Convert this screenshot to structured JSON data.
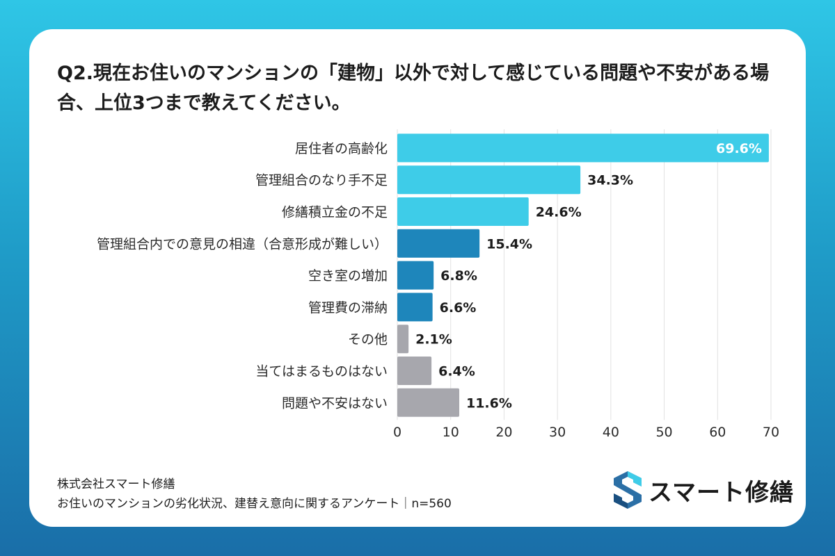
{
  "title": "Q2.現在お住いのマンションの「建物」以外で対して感じている問題や不安がある場合、上位3つまで教えてください。",
  "footer": {
    "company": "株式会社スマート修繕",
    "note": "お住いのマンションの劣化状況、建替え意向に関するアンケート｜n=560"
  },
  "logo": {
    "text": "スマート修繕",
    "icon": "s-logo-icon"
  },
  "colors": {
    "background_top": "#2fc6e6",
    "background_bottom": "#1a6ea8",
    "bar_top3": "#3ecce8",
    "bar_mid": "#1e86bb",
    "bar_other": "#a7a7ad",
    "grid": "#e2e2e2"
  },
  "chart_data": {
    "type": "bar",
    "orientation": "horizontal",
    "categories": [
      "居住者の高齢化",
      "管理組合のなり手不足",
      "修繕積立金の不足",
      "管理組合内での意見の相違（合意形成が難しい）",
      "空き室の増加",
      "管理費の滞納",
      "その他",
      "当てはまるものはない",
      "問題や不安はない"
    ],
    "values": [
      69.6,
      34.3,
      24.6,
      15.4,
      6.8,
      6.6,
      2.1,
      6.4,
      11.6
    ],
    "labels": [
      "69.6%",
      "34.3%",
      "24.6%",
      "15.4%",
      "6.8%",
      "6.6%",
      "2.1%",
      "6.4%",
      "11.6%"
    ],
    "color_groups": [
      "top3",
      "top3",
      "top3",
      "mid",
      "mid",
      "mid",
      "other",
      "other",
      "other"
    ],
    "xlim": [
      0,
      70
    ],
    "xticks": [
      0,
      10,
      20,
      30,
      40,
      50,
      60,
      70
    ],
    "grid": true,
    "xlabel": "",
    "ylabel": ""
  }
}
